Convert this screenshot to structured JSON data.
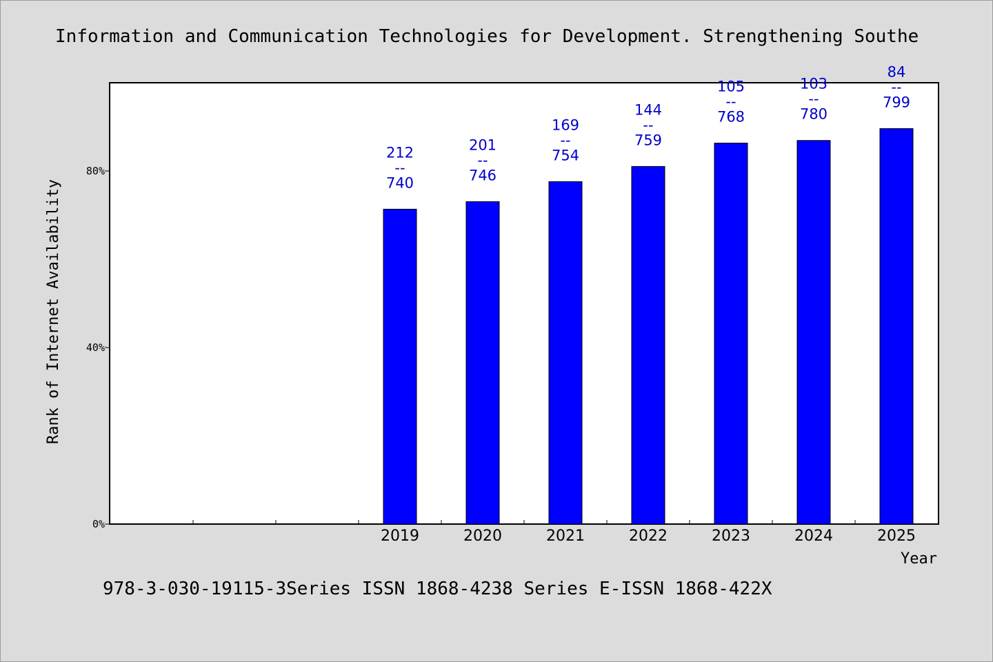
{
  "chart_data": {
    "type": "bar",
    "title": "Information and Communication Technologies for Development. Strengthening Southe",
    "xlabel": "Year",
    "ylabel": "Rank of Internet Availability",
    "footer": "978-3-030-19115-3Series ISSN 1868-4238 Series E-ISSN 1868-422X",
    "categories": [
      "",
      "",
      "",
      "2019",
      "2020",
      "2021",
      "2022",
      "2023",
      "2024",
      "2025"
    ],
    "values": [
      null,
      null,
      null,
      71.35,
      73.06,
      77.59,
      81.03,
      86.33,
      86.92,
      89.61
    ],
    "bar_labels": [
      {
        "top": "212",
        "sep": "--",
        "bottom": "740"
      },
      {
        "top": "201",
        "sep": "--",
        "bottom": "746"
      },
      {
        "top": "169",
        "sep": "--",
        "bottom": "754"
      },
      {
        "top": "144",
        "sep": "--",
        "bottom": "759"
      },
      {
        "top": "105",
        "sep": "--",
        "bottom": "768"
      },
      {
        "top": "103",
        "sep": "--",
        "bottom": "780"
      },
      {
        "top": "84",
        "sep": "--",
        "bottom": "799"
      }
    ],
    "ylim": [
      0,
      100
    ],
    "yticks": [
      {
        "value": 0,
        "label": "0%"
      },
      {
        "value": 40,
        "label": "40%"
      },
      {
        "value": 80,
        "label": "80%"
      }
    ],
    "grid": false,
    "legend": "none",
    "colors": {
      "bar": "#0000ff",
      "bar_label": "#0000cc",
      "background": "#dcdcdc",
      "plot_background": "#ffffff",
      "axis": "#000000"
    }
  }
}
